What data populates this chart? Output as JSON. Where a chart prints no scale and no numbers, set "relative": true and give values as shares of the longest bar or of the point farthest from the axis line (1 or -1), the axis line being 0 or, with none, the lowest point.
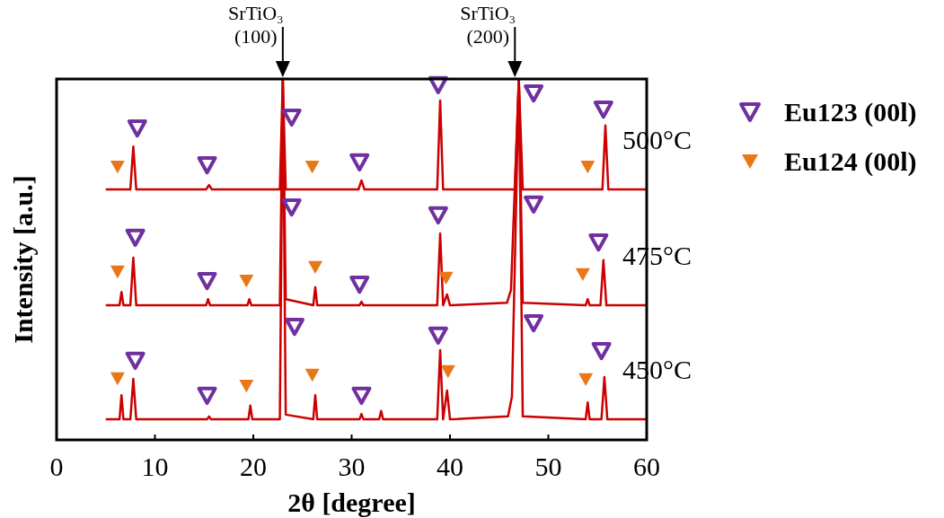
{
  "chart_data": {
    "type": "line",
    "relative": true,
    "xlabel": "2θ [degree]",
    "ylabel": "Intensity [a.u.]",
    "xlim": [
      0,
      60
    ],
    "xticks": [
      0,
      10,
      20,
      30,
      40,
      50,
      60
    ],
    "grid": false,
    "legend": "right",
    "annotations": [
      {
        "text": "SrTiO₃ (100)",
        "x": 23,
        "y": 1
      },
      {
        "text": "SrTiO₃ (200)",
        "x": 46.6,
        "y": 1
      }
    ],
    "series": [
      {
        "name": "500°C",
        "color": "#cc0000",
        "x": [
          5,
          6.5,
          7.5,
          7.8,
          8.1,
          15.2,
          15.5,
          15.8,
          22.7,
          23,
          23.3,
          30.7,
          31,
          31.3,
          38.7,
          39,
          39.3,
          46.6,
          47,
          47.4,
          55.5,
          55.8,
          56.1,
          60
        ],
        "values": [
          0.694,
          0.694,
          0.694,
          0.813,
          0.694,
          0.694,
          0.706,
          0.694,
          0.694,
          1,
          0.694,
          0.694,
          0.719,
          0.694,
          0.694,
          0.94,
          0.694,
          0.694,
          1,
          0.694,
          0.694,
          0.871,
          0.694,
          0.694
        ]
      },
      {
        "name": "475°C",
        "color": "#cc0000",
        "x": [
          5,
          6.4,
          6.6,
          6.8,
          7.5,
          7.8,
          8.1,
          15.2,
          15.4,
          15.6,
          19.4,
          19.6,
          19.8,
          22.7,
          23,
          23.3,
          26.1,
          26.3,
          26.5,
          30.8,
          31,
          31.2,
          38.7,
          39,
          39.3,
          39.7,
          40,
          45.8,
          46.2,
          47,
          47.4,
          53.8,
          54,
          54.2,
          55.3,
          55.6,
          55.9,
          60
        ],
        "values": [
          0.373,
          0.373,
          0.41,
          0.373,
          0.373,
          0.505,
          0.373,
          0.373,
          0.39,
          0.373,
          0.373,
          0.39,
          0.373,
          0.373,
          1,
          0.39,
          0.373,
          0.423,
          0.373,
          0.373,
          0.383,
          0.373,
          0.373,
          0.572,
          0.373,
          0.403,
          0.373,
          0.38,
          0.415,
          1,
          0.38,
          0.373,
          0.39,
          0.373,
          0.373,
          0.498,
          0.373,
          0.373
        ]
      },
      {
        "name": "450°C",
        "color": "#cc0000",
        "x": [
          5,
          6.4,
          6.6,
          6.8,
          7.5,
          7.8,
          8.1,
          15.3,
          15.5,
          15.7,
          19.5,
          19.7,
          19.9,
          22.7,
          23,
          23.3,
          26.1,
          26.3,
          26.5,
          30.8,
          31,
          31.2,
          32.8,
          33,
          33.2,
          38.7,
          39,
          39.3,
          39.7,
          40,
          45.9,
          46.3,
          47,
          47.4,
          53.8,
          54,
          54.2,
          55.4,
          55.7,
          56,
          60
        ],
        "values": [
          0.057,
          0.057,
          0.124,
          0.057,
          0.057,
          0.169,
          0.057,
          0.057,
          0.065,
          0.057,
          0.057,
          0.095,
          0.057,
          0.057,
          1,
          0.07,
          0.057,
          0.124,
          0.057,
          0.057,
          0.072,
          0.057,
          0.057,
          0.08,
          0.057,
          0.057,
          0.249,
          0.057,
          0.137,
          0.057,
          0.065,
          0.12,
          1,
          0.065,
          0.057,
          0.104,
          0.057,
          0.057,
          0.174,
          0.057,
          0.057
        ]
      },
      {
        "name": "Eu123 (00l)",
        "type": "scatter",
        "marker": "triangle",
        "color": "#7030a0",
        "x": [
          8.2,
          15.3,
          23.9,
          30.8,
          38.8,
          48.5,
          55.6,
          8,
          15.3,
          23.9,
          30.8,
          38.8,
          48.5,
          55.1,
          8,
          15.3,
          24.2,
          31,
          38.8,
          48.5,
          55.4
        ],
        "values": [
          0.863,
          0.761,
          0.893,
          0.769,
          0.983,
          0.96,
          0.915,
          0.56,
          0.44,
          0.644,
          0.43,
          0.622,
          0.652,
          0.547,
          0.219,
          0.122,
          0.313,
          0.122,
          0.289,
          0.323,
          0.246
        ]
      },
      {
        "name": "Eu124 (00l)",
        "type": "scatter",
        "marker": "triangle",
        "color": "#e87817",
        "x": [
          6.2,
          26,
          54,
          6.2,
          19.3,
          26.3,
          39.6,
          53.5,
          6.2,
          19.3,
          26,
          39.8,
          53.8
        ],
        "values": [
          0.756,
          0.756,
          0.756,
          0.465,
          0.44,
          0.478,
          0.448,
          0.458,
          0.169,
          0.149,
          0.179,
          0.189,
          0.167
        ]
      }
    ]
  }
}
